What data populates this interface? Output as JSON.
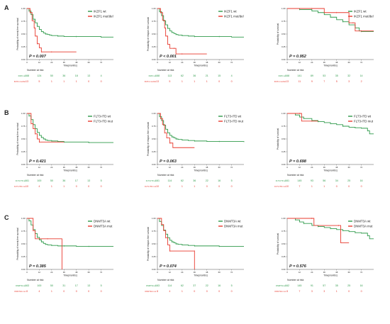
{
  "colors": {
    "wt": "#2e9a4a",
    "mut": "#e83a2e",
    "axis": "#555555",
    "text": "#222222"
  },
  "rows": [
    {
      "label": "A",
      "gene": "IKZF1"
    },
    {
      "label": "B",
      "gene": "FLT3-ITD"
    },
    {
      "label": "C",
      "gene": "DNMT3A"
    }
  ],
  "chart_data": [
    {
      "type": "line",
      "panel": "A1",
      "ylabel": "Probability of event-free survival",
      "xlabel": "Time(months)",
      "xlim": [
        0,
        84
      ],
      "ylim": [
        0,
        1
      ],
      "xticks": [
        0,
        12,
        24,
        36,
        48,
        60,
        72
      ],
      "yticks": [
        0,
        0.25,
        0.5,
        0.75,
        1.0
      ],
      "pvalue": "P = 0.007",
      "legend": [
        "IKZF1 wt",
        "IKZF1 mut/del"
      ],
      "risk_labels": [
        "IKZF1 wt",
        "IKZF1 mut/del"
      ],
      "risk_title": "Number at risk",
      "risk": [
        [
          168,
          124,
          50,
          36,
          18,
          13,
          4
        ],
        [
          13,
          5,
          1,
          1,
          1,
          0,
          0
        ]
      ],
      "series": [
        {
          "name": "IKZF1 wt",
          "x": [
            0,
            2,
            4,
            6,
            8,
            10,
            12,
            14,
            16,
            18,
            20,
            22,
            24,
            30,
            36,
            48,
            60,
            72,
            84
          ],
          "y": [
            1,
            0.95,
            0.88,
            0.79,
            0.72,
            0.65,
            0.59,
            0.55,
            0.52,
            0.5,
            0.49,
            0.48,
            0.47,
            0.46,
            0.45,
            0.45,
            0.45,
            0.44,
            0.44
          ]
        },
        {
          "name": "IKZF1 mut/del",
          "x": [
            0,
            3,
            5,
            7,
            8,
            10,
            12,
            14,
            18,
            24,
            36,
            48
          ],
          "y": [
            1,
            0.92,
            0.76,
            0.62,
            0.46,
            0.31,
            0.23,
            0.15,
            0.15,
            0.15,
            0.15,
            0.15
          ]
        }
      ]
    },
    {
      "type": "line",
      "panel": "A2",
      "ylabel": "Probability of relapse-free survival",
      "xlabel": "Time(months)",
      "xlim": [
        0,
        84
      ],
      "ylim": [
        0,
        1
      ],
      "xticks": [
        0,
        12,
        24,
        36,
        48,
        60,
        72
      ],
      "yticks": [
        0,
        0.25,
        0.5,
        0.75,
        1.0
      ],
      "pvalue": "P < 0.001",
      "legend": [
        "IKZF1 wt",
        "IKZF1 mut/del"
      ],
      "risk_labels": [
        "IKZF1 wt",
        "IKZF1 mut/del"
      ],
      "risk_title": "Number at risk",
      "risk": [
        [
          168,
          113,
          62,
          36,
          21,
          15,
          4
        ],
        [
          13,
          5,
          1,
          1,
          1,
          0,
          0
        ]
      ],
      "series": [
        {
          "name": "IKZF1 wt",
          "x": [
            0,
            2,
            4,
            6,
            8,
            10,
            12,
            14,
            16,
            18,
            20,
            24,
            30,
            36,
            48,
            60,
            72,
            84
          ],
          "y": [
            1,
            0.94,
            0.86,
            0.76,
            0.68,
            0.61,
            0.56,
            0.53,
            0.51,
            0.49,
            0.48,
            0.47,
            0.46,
            0.45,
            0.45,
            0.45,
            0.44,
            0.44
          ]
        },
        {
          "name": "IKZF1 mut/del",
          "x": [
            0,
            3,
            5,
            7,
            8,
            10,
            12,
            16,
            18,
            24,
            36,
            48
          ],
          "y": [
            1,
            0.92,
            0.77,
            0.62,
            0.46,
            0.3,
            0.22,
            0.22,
            0.11,
            0.11,
            0.11,
            0.11
          ]
        }
      ]
    },
    {
      "type": "line",
      "panel": "A3",
      "ylabel": "Probability of survival",
      "xlabel": "Time(months)",
      "xlim": [
        0,
        84
      ],
      "ylim": [
        0,
        1
      ],
      "xticks": [
        0,
        12,
        24,
        36,
        48,
        60,
        72
      ],
      "yticks": [
        0,
        0.25,
        0.5,
        0.75,
        1.0
      ],
      "pvalue": "P = 0.952",
      "legend": [
        "IKZF1 wt",
        "IKZF1 mut/del"
      ],
      "risk_labels": [
        "IKZF1 wt",
        "IKZF1 mut/del"
      ],
      "risk_title": "Number at risk",
      "risk": [
        [
          168,
          141,
          89,
          53,
          35,
          32,
          14
        ],
        [
          13,
          11,
          9,
          7,
          5,
          3,
          2
        ]
      ],
      "series": [
        {
          "name": "IKZF1 wt",
          "x": [
            0,
            12,
            24,
            30,
            36,
            42,
            48,
            54,
            60,
            66,
            70,
            72,
            84
          ],
          "y": [
            1,
            0.98,
            0.95,
            0.92,
            0.88,
            0.83,
            0.78,
            0.74,
            0.68,
            0.62,
            0.56,
            0.55,
            0.55
          ]
        },
        {
          "name": "IKZF1 mut/del",
          "x": [
            0,
            24,
            36,
            48,
            60,
            64,
            66,
            72,
            84
          ],
          "y": [
            1,
            1,
            0.92,
            0.92,
            0.72,
            0.72,
            0.56,
            0.56,
            0.56
          ]
        }
      ]
    },
    {
      "type": "line",
      "panel": "B1",
      "ylabel": "Probability of event-free survival",
      "xlabel": "Time(months)",
      "xlim": [
        0,
        84
      ],
      "ylim": [
        0,
        1
      ],
      "xticks": [
        0,
        12,
        24,
        36,
        48,
        60,
        72
      ],
      "yticks": [
        0,
        0.25,
        0.5,
        0.75,
        1.0
      ],
      "pvalue": "P = 0.421",
      "legend": [
        "FLT3-ITD wt",
        "FLT3-ITD mut"
      ],
      "risk_labels": [
        "FLT3-ITD wt",
        "FLT3-ITD mut"
      ],
      "risk_title": "Number at risk",
      "risk": [
        [
          161,
          100,
          50,
          36,
          17,
          13,
          5
        ],
        [
          10,
          4,
          1,
          1,
          0,
          0,
          0
        ]
      ],
      "series": [
        {
          "name": "FLT3-ITD wt",
          "x": [
            0,
            2,
            4,
            6,
            8,
            10,
            12,
            14,
            16,
            18,
            20,
            24,
            30,
            36,
            48,
            60,
            72,
            84
          ],
          "y": [
            1,
            0.95,
            0.88,
            0.78,
            0.7,
            0.63,
            0.57,
            0.53,
            0.5,
            0.48,
            0.47,
            0.46,
            0.45,
            0.44,
            0.44,
            0.43,
            0.43,
            0.43
          ]
        },
        {
          "name": "FLT3-ITD mut",
          "x": [
            0,
            4,
            6,
            8,
            10,
            12,
            14,
            36
          ],
          "y": [
            1,
            0.8,
            0.7,
            0.6,
            0.5,
            0.44,
            0.44,
            0.44
          ]
        }
      ]
    },
    {
      "type": "line",
      "panel": "B2",
      "ylabel": "Probability of relapse-free survival",
      "xlabel": "Time(months)",
      "xlim": [
        0,
        84
      ],
      "ylim": [
        0,
        1
      ],
      "xticks": [
        0,
        12,
        24,
        36,
        48,
        60,
        72
      ],
      "yticks": [
        0,
        0.25,
        0.5,
        0.75,
        1.0
      ],
      "pvalue": "P = 0.063",
      "legend": [
        "FLT3-ITD wt",
        "FLT3-ITD mut"
      ],
      "risk_labels": [
        "FLT3-ITD wt",
        "FLT3-ITD mut"
      ],
      "risk_title": "Number at risk",
      "risk": [
        [
          161,
          114,
          62,
          36,
          22,
          16,
          5
        ],
        [
          10,
          4,
          1,
          1,
          0,
          0,
          0
        ]
      ],
      "series": [
        {
          "name": "FLT3-ITD wt",
          "x": [
            0,
            2,
            4,
            6,
            8,
            10,
            12,
            14,
            16,
            18,
            20,
            24,
            30,
            36,
            48,
            60,
            72,
            84
          ],
          "y": [
            1,
            0.94,
            0.86,
            0.77,
            0.69,
            0.62,
            0.57,
            0.54,
            0.52,
            0.5,
            0.49,
            0.48,
            0.47,
            0.46,
            0.45,
            0.45,
            0.45,
            0.44
          ]
        },
        {
          "name": "FLT3-ITD mut",
          "x": [
            0,
            3,
            5,
            7,
            9,
            12,
            15,
            36
          ],
          "y": [
            1,
            0.9,
            0.78,
            0.62,
            0.52,
            0.42,
            0.33,
            0.33
          ]
        }
      ]
    },
    {
      "type": "line",
      "panel": "B3",
      "ylabel": "Probability of survival",
      "xlabel": "Time(months)",
      "xlim": [
        0,
        84
      ],
      "ylim": [
        0,
        1
      ],
      "xticks": [
        0,
        12,
        24,
        36,
        48,
        60,
        72
      ],
      "yticks": [
        0,
        0.25,
        0.5,
        0.75,
        1.0
      ],
      "pvalue": "P = 0.698",
      "legend": [
        "FLT3-ITD wt",
        "FLT3-ITD mut"
      ],
      "risk_labels": [
        "FLT3-ITD wt",
        "FLT3-ITD mut"
      ],
      "risk_title": "Number at risk",
      "risk": [
        [
          161,
          145,
          93,
          56,
          34,
          25,
          16
        ],
        [
          10,
          7,
          1,
          1,
          0,
          0,
          0
        ]
      ],
      "series": [
        {
          "name": "FLT3-ITD wt",
          "x": [
            0,
            8,
            12,
            16,
            24,
            30,
            36,
            42,
            48,
            54,
            60,
            66,
            72,
            78,
            80,
            84
          ],
          "y": [
            1,
            0.97,
            0.93,
            0.9,
            0.86,
            0.84,
            0.82,
            0.8,
            0.78,
            0.75,
            0.73,
            0.72,
            0.71,
            0.66,
            0.6,
            0.6
          ]
        },
        {
          "name": "FLT3-ITD mut",
          "x": [
            0,
            12,
            14,
            24,
            30
          ],
          "y": [
            1,
            1,
            0.85,
            0.85,
            0.85
          ]
        }
      ]
    },
    {
      "type": "line",
      "panel": "C1",
      "ylabel": "Probability of event-free survival",
      "xlabel": "Time(months)",
      "xlim": [
        0,
        84
      ],
      "ylim": [
        0,
        1
      ],
      "xticks": [
        0,
        12,
        24,
        36,
        48,
        60,
        72
      ],
      "yticks": [
        0,
        0.25,
        0.5,
        0.75,
        1.0
      ],
      "pvalue": "P = 0.385",
      "legend": [
        "DNMT3A wt",
        "DNMT3A mut"
      ],
      "risk_labels": [
        "DNMT3A wt",
        "DNMT3A mut"
      ],
      "risk_title": "Number at risk",
      "risk": [
        [
          163,
          100,
          50,
          31,
          17,
          13,
          5
        ],
        [
          8,
          4,
          1,
          0,
          0,
          0,
          0
        ]
      ],
      "series": [
        {
          "name": "DNMT3A wt",
          "x": [
            0,
            2,
            4,
            6,
            8,
            10,
            12,
            14,
            16,
            18,
            20,
            24,
            30,
            36,
            48,
            60,
            72,
            84
          ],
          "y": [
            1,
            0.95,
            0.87,
            0.78,
            0.7,
            0.63,
            0.58,
            0.54,
            0.51,
            0.49,
            0.48,
            0.47,
            0.46,
            0.46,
            0.45,
            0.45,
            0.45,
            0.45
          ]
        },
        {
          "name": "DNMT3A mut",
          "x": [
            0,
            6,
            8,
            20,
            34,
            34.01
          ],
          "y": [
            1,
            0.76,
            0.6,
            0.6,
            0.6,
            0
          ]
        }
      ]
    },
    {
      "type": "line",
      "panel": "C2",
      "ylabel": "Probability of relapse-free survival",
      "xlabel": "Time(months)",
      "xlim": [
        0,
        84
      ],
      "ylim": [
        0,
        1
      ],
      "xticks": [
        0,
        12,
        24,
        36,
        48,
        60,
        72
      ],
      "yticks": [
        0,
        0.25,
        0.5,
        0.75,
        1.0
      ],
      "pvalue": "P = 0.074",
      "legend": [
        "DNMT3A wt",
        "DNMT3A mut"
      ],
      "risk_labels": [
        "DNMT3A wt",
        "DNMT3A mut"
      ],
      "risk_title": "Number at risk",
      "risk": [
        [
          163,
          114,
          62,
          37,
          22,
          16,
          5
        ],
        [
          8,
          4,
          1,
          0,
          0,
          0,
          0
        ]
      ],
      "series": [
        {
          "name": "DNMT3A wt",
          "x": [
            0,
            2,
            4,
            6,
            8,
            10,
            12,
            14,
            16,
            18,
            20,
            24,
            30,
            36,
            48,
            60,
            72,
            84
          ],
          "y": [
            1,
            0.94,
            0.86,
            0.77,
            0.69,
            0.62,
            0.57,
            0.54,
            0.52,
            0.5,
            0.49,
            0.48,
            0.47,
            0.46,
            0.46,
            0.45,
            0.45,
            0.45
          ]
        },
        {
          "name": "DNMT3A mut",
          "x": [
            0,
            4,
            6,
            8,
            10,
            12,
            30,
            36,
            36.01
          ],
          "y": [
            1,
            0.88,
            0.76,
            0.62,
            0.48,
            0.36,
            0.36,
            0.36,
            0
          ]
        }
      ]
    },
    {
      "type": "line",
      "panel": "C3",
      "ylabel": "Probability of survival",
      "xlabel": "Time(months)",
      "xlim": [
        0,
        84
      ],
      "ylim": [
        0,
        1
      ],
      "xticks": [
        0,
        12,
        24,
        36,
        48,
        60,
        72
      ],
      "yticks": [
        0,
        0.25,
        0.5,
        0.75,
        1.0
      ],
      "pvalue": "P = 0.576",
      "legend": [
        "DNMT3A wt",
        "DNMT3A mut"
      ],
      "risk_labels": [
        "DNMT3A wt",
        "DNMT3A mut"
      ],
      "risk_title": "Number at risk",
      "risk": [
        [
          162,
          145,
          91,
          57,
          35,
          25,
          16
        ],
        [
          8,
          7,
          3,
          3,
          1,
          0,
          0
        ]
      ],
      "series": [
        {
          "name": "DNMT3A wt",
          "x": [
            0,
            8,
            12,
            16,
            24,
            30,
            36,
            42,
            48,
            54,
            60,
            66,
            72,
            78,
            80,
            84
          ],
          "y": [
            1,
            0.97,
            0.93,
            0.9,
            0.86,
            0.84,
            0.82,
            0.8,
            0.78,
            0.76,
            0.74,
            0.72,
            0.71,
            0.66,
            0.6,
            0.6
          ]
        },
        {
          "name": "DNMT3A mut",
          "x": [
            0,
            24,
            26,
            50,
            52,
            60
          ],
          "y": [
            1,
            1,
            0.86,
            0.86,
            0.52,
            0.52
          ]
        }
      ]
    }
  ]
}
